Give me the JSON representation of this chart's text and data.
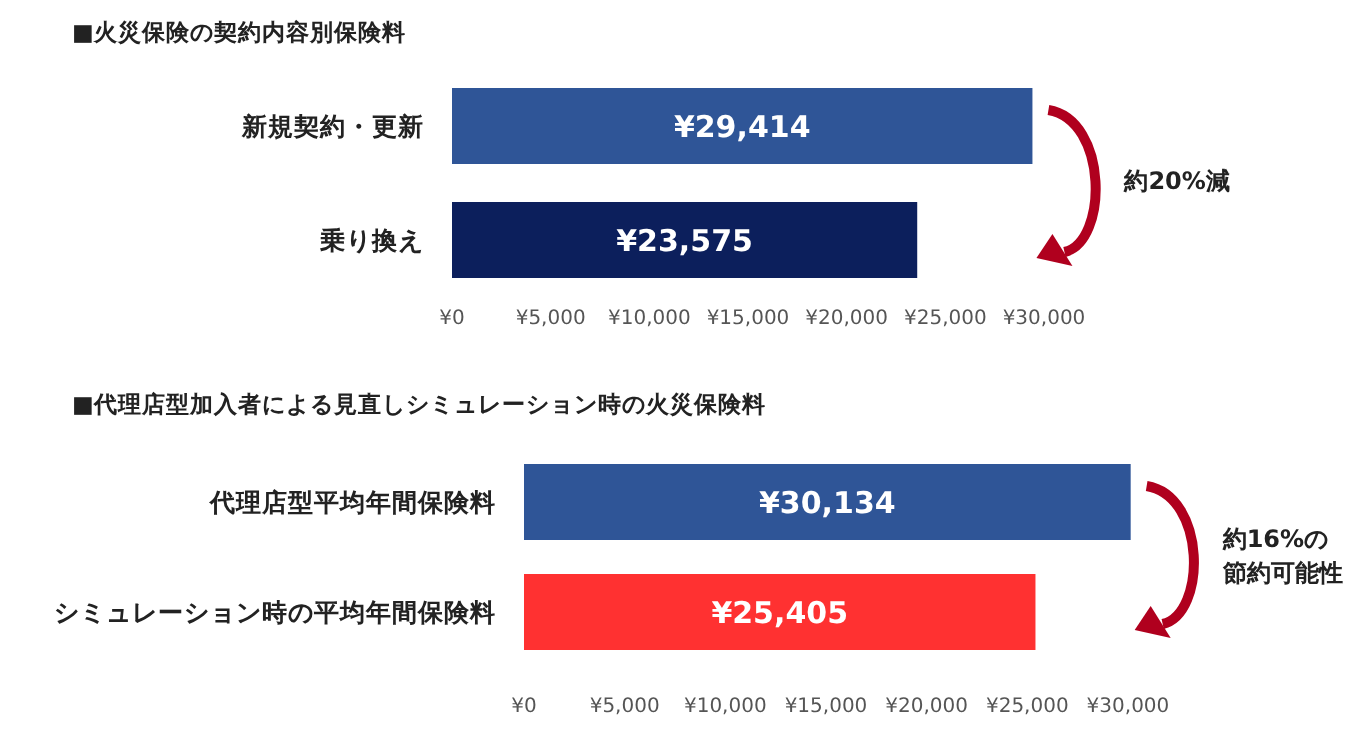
{
  "chart_data": [
    {
      "type": "bar",
      "orientation": "horizontal",
      "title": "■火災保険の契約内容別保険料",
      "categories": [
        "新規契約・更新",
        "乗り換え"
      ],
      "values": [
        29414,
        23575
      ],
      "colors": [
        "#2f5597",
        "#0c1f5c"
      ],
      "value_labels": [
        "¥29,414",
        "¥23,575"
      ],
      "xlim": [
        0,
        30000
      ],
      "xticks": [
        {
          "value": 0,
          "label": "¥0"
        },
        {
          "value": 5000,
          "label": "¥5,000"
        },
        {
          "value": 10000,
          "label": "¥10,000"
        },
        {
          "value": 15000,
          "label": "¥15,000"
        },
        {
          "value": 20000,
          "label": "¥20,000"
        },
        {
          "value": 25000,
          "label": "¥25,000"
        },
        {
          "value": 30000,
          "label": "¥30,000"
        }
      ],
      "annotations": [
        "約20%減"
      ]
    },
    {
      "type": "bar",
      "orientation": "horizontal",
      "title": "■代理店型加入者による見直しシミュレーション時の火災保険料",
      "categories": [
        "代理店型平均年間保険料",
        "シミュレーション時の平均年間保険料"
      ],
      "values": [
        30134,
        25405
      ],
      "colors": [
        "#2f5597",
        "#ff3131"
      ],
      "value_labels": [
        "¥30,134",
        "¥25,405"
      ],
      "xlim": [
        0,
        30200
      ],
      "xticks": [
        {
          "value": 0,
          "label": "¥0"
        },
        {
          "value": 5000,
          "label": "¥5,000"
        },
        {
          "value": 10000,
          "label": "¥10,000"
        },
        {
          "value": 15000,
          "label": "¥15,000"
        },
        {
          "value": 20000,
          "label": "¥20,000"
        },
        {
          "value": 25000,
          "label": "¥25,000"
        },
        {
          "value": 30000,
          "label": "¥30,000"
        }
      ],
      "annotations": [
        "約16%の",
        "節約可能性"
      ]
    }
  ]
}
